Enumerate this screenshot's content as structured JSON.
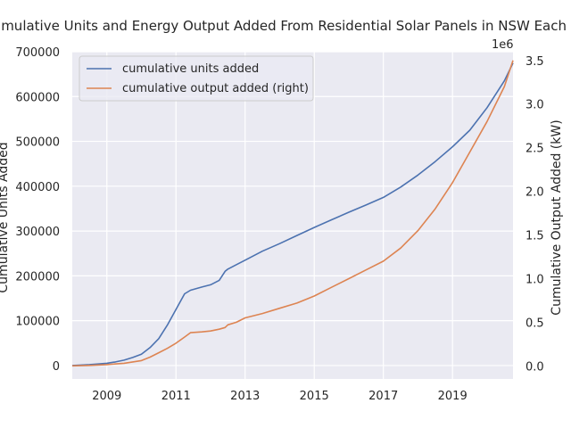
{
  "chart_data": {
    "type": "line",
    "title": "Cumulative Units and Energy Output Added From Residential Solar Panels in NSW Each Month",
    "ylabel_left": "Cumulative Units Added",
    "ylabel_right": "Cumulative Output Added (kW)",
    "right_axis_offset_text": "1e6",
    "xlim": [
      2008.0,
      2020.75
    ],
    "ylim_left": [
      -30000,
      700000
    ],
    "ylim_right": [
      -150000,
      3600000
    ],
    "x_ticks": [
      2009,
      2011,
      2013,
      2015,
      2017,
      2019
    ],
    "x_tick_labels": [
      "2009",
      "2011",
      "2013",
      "2015",
      "2017",
      "2019"
    ],
    "y_ticks_left": [
      0,
      100000,
      200000,
      300000,
      400000,
      500000,
      600000,
      700000
    ],
    "y_tick_labels_left": [
      "0",
      "100000",
      "200000",
      "300000",
      "400000",
      "500000",
      "600000",
      "700000"
    ],
    "y_ticks_right": [
      0,
      500000,
      1000000,
      1500000,
      2000000,
      2500000,
      3000000,
      3500000
    ],
    "y_tick_labels_right": [
      "0.0",
      "0.5",
      "1.0",
      "1.5",
      "2.0",
      "2.5",
      "3.0",
      "3.5"
    ],
    "grid": true,
    "legend_position": "top-left",
    "series": [
      {
        "name": "cumulative units added",
        "axis": "left",
        "color": "#4c72b0",
        "x": [
          2008.0,
          2008.5,
          2009.0,
          2009.25,
          2009.5,
          2009.75,
          2010.0,
          2010.25,
          2010.5,
          2010.75,
          2011.0,
          2011.25,
          2011.42,
          2011.75,
          2012.0,
          2012.25,
          2012.42,
          2012.5,
          2012.75,
          2013.0,
          2013.5,
          2014.0,
          2014.5,
          2015.0,
          2015.5,
          2016.0,
          2016.5,
          2017.0,
          2017.5,
          2018.0,
          2018.5,
          2019.0,
          2019.5,
          2020.0,
          2020.5,
          2020.75
        ],
        "y": [
          0,
          2000,
          5000,
          8000,
          12000,
          18000,
          25000,
          40000,
          60000,
          90000,
          125000,
          160000,
          168000,
          175000,
          180000,
          190000,
          210000,
          215000,
          225000,
          235000,
          255000,
          272000,
          290000,
          308000,
          325000,
          342000,
          358000,
          375000,
          398000,
          425000,
          455000,
          488000,
          525000,
          575000,
          635000,
          675000
        ]
      },
      {
        "name": "cumulative output added (right)",
        "axis": "right",
        "color": "#dd8452",
        "x": [
          2008.0,
          2008.5,
          2009.0,
          2009.5,
          2009.75,
          2010.0,
          2010.25,
          2010.5,
          2010.75,
          2011.0,
          2011.25,
          2011.42,
          2011.75,
          2012.0,
          2012.25,
          2012.42,
          2012.5,
          2012.75,
          2013.0,
          2013.5,
          2014.0,
          2014.5,
          2015.0,
          2015.5,
          2016.0,
          2016.5,
          2017.0,
          2017.5,
          2018.0,
          2018.5,
          2019.0,
          2019.5,
          2020.0,
          2020.5,
          2020.75
        ],
        "y": [
          0,
          5000,
          15000,
          30000,
          45000,
          60000,
          100000,
          150000,
          200000,
          260000,
          330000,
          380000,
          390000,
          400000,
          420000,
          440000,
          470000,
          500000,
          550000,
          600000,
          660000,
          720000,
          800000,
          900000,
          1000000,
          1100000,
          1200000,
          1350000,
          1550000,
          1800000,
          2100000,
          2450000,
          2800000,
          3200000,
          3500000
        ]
      }
    ]
  }
}
